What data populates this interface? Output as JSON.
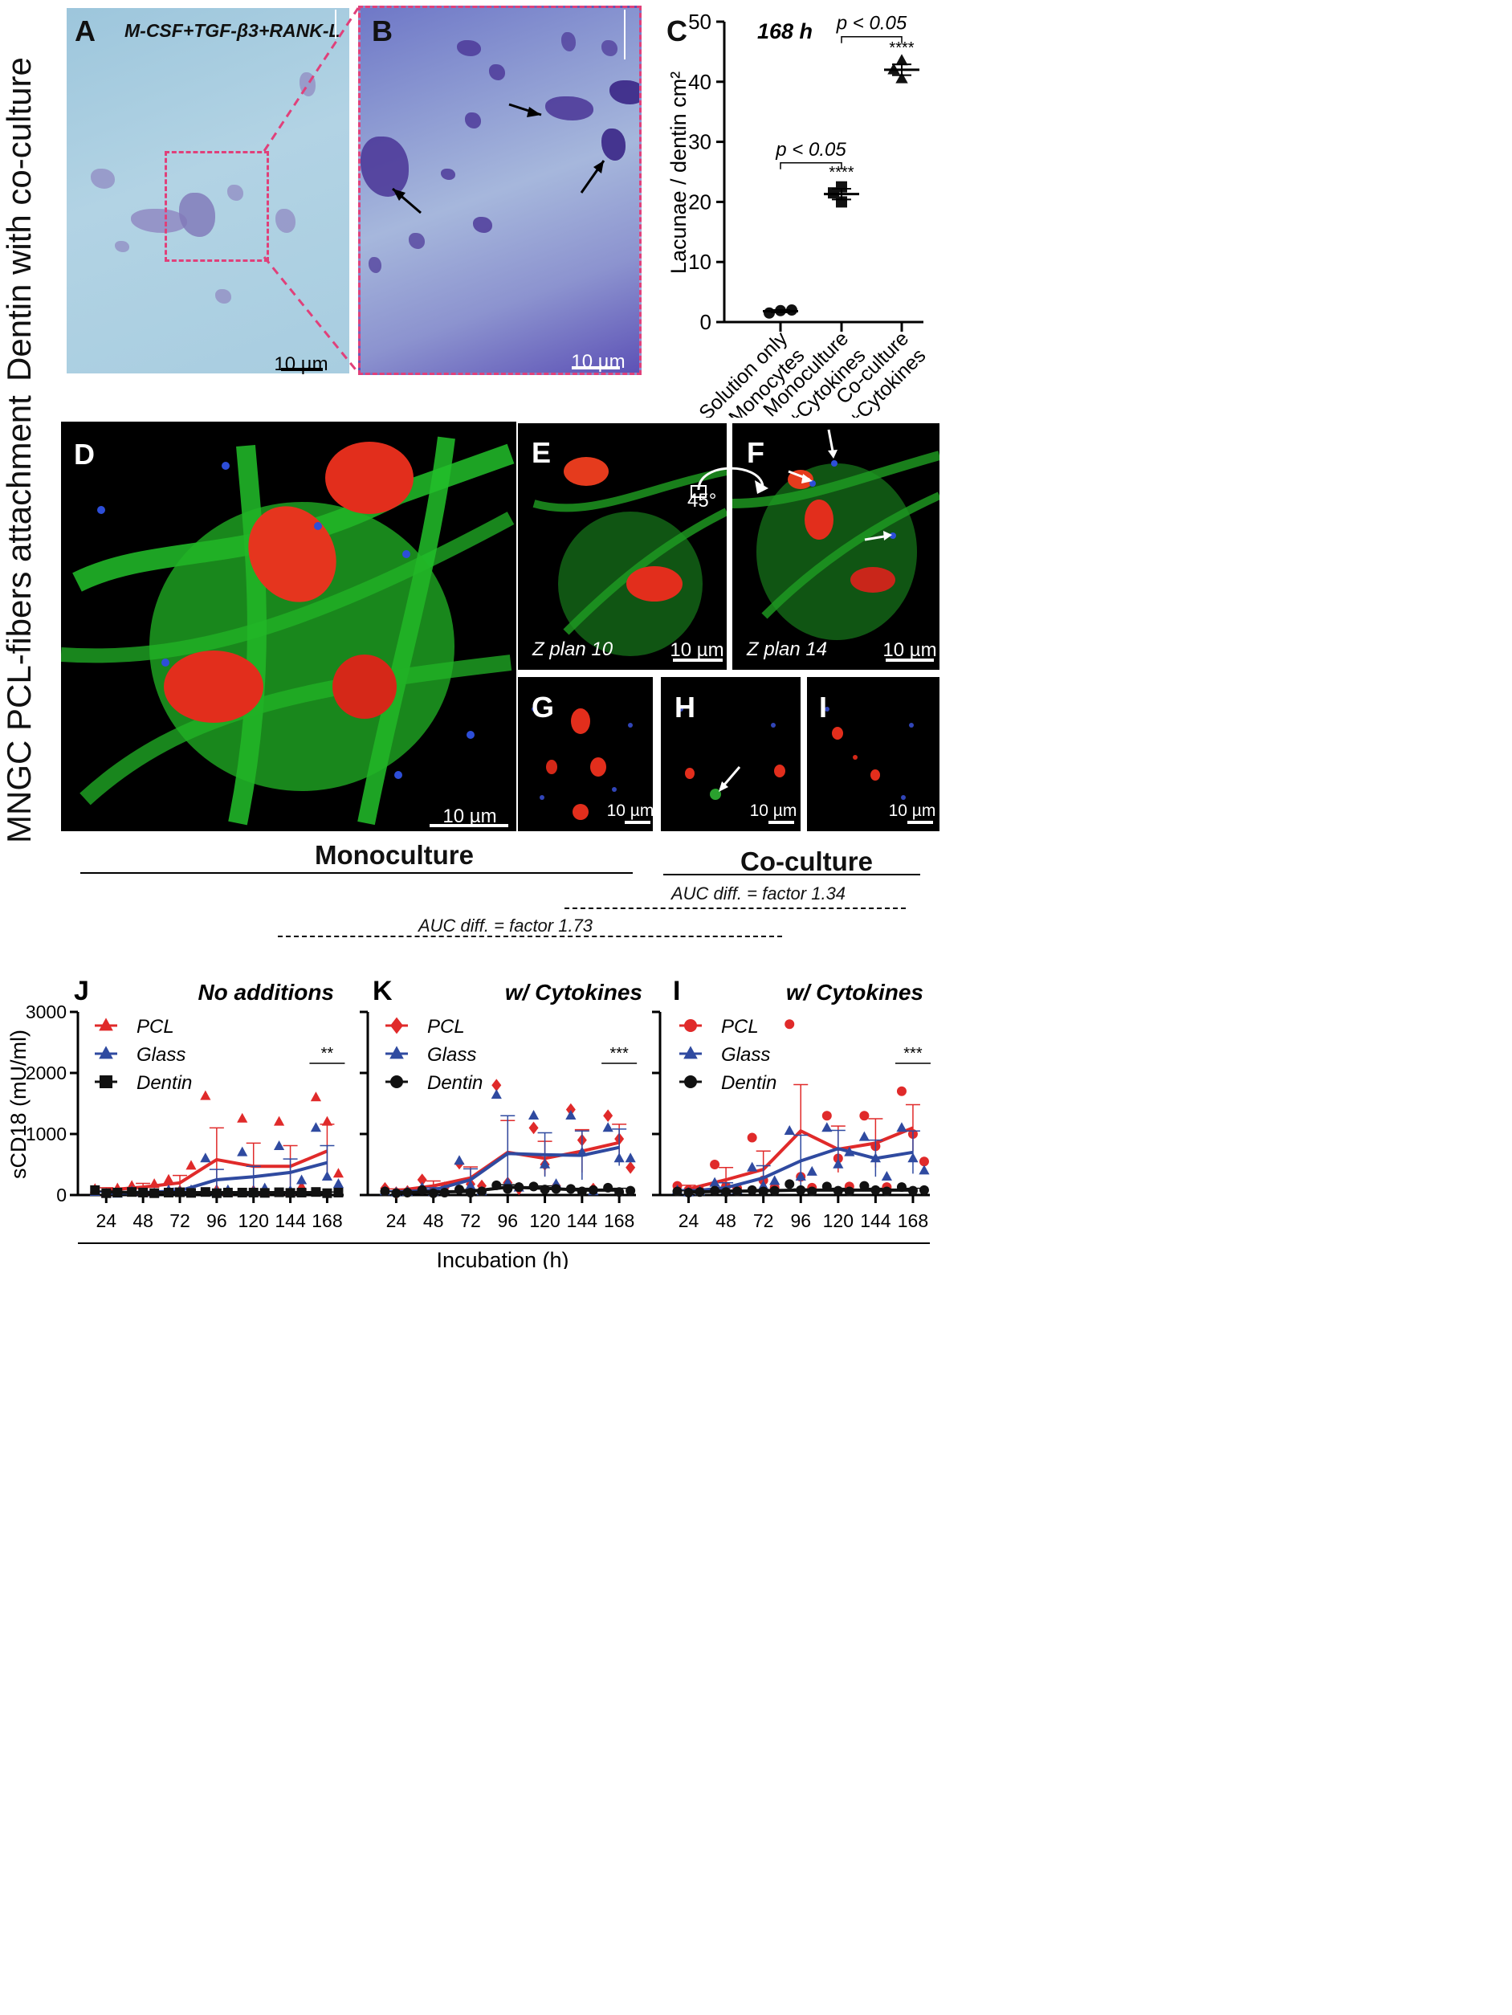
{
  "row_labels": {
    "top": "Dentin with co-culture",
    "middle": "MNGC PCL-fibers attachment"
  },
  "panels": {
    "A": {
      "letter": "A",
      "caption": "M-CSF+TGF-β3+RANK-L",
      "scale": "10 µm"
    },
    "B": {
      "letter": "B",
      "scale": "10 µm"
    },
    "C": {
      "letter": "C"
    },
    "D": {
      "letter": "D",
      "scale": "10 µm"
    },
    "E": {
      "letter": "E",
      "zplan": "Z plan 10",
      "scale": "10 µm"
    },
    "F": {
      "letter": "F",
      "zplan": "Z plan 14",
      "scale": "10 µm"
    },
    "angle": "45°",
    "G": {
      "letter": "G",
      "scale": "10 µm"
    },
    "H": {
      "letter": "H",
      "scale": "10 µm"
    },
    "I": {
      "letter": "I",
      "scale": "10 µm"
    }
  },
  "group_labels": {
    "monoculture": "Monoculture",
    "coculture": "Co-culture",
    "auc1": "AUC diff. = factor 1.34",
    "auc2": "AUC diff. = factor 1.73"
  },
  "colors": {
    "pcl": "#e02a2a",
    "glass": "#2f4aa0",
    "dentin": "#111111",
    "dashed_box": "#e0407a"
  },
  "chart_data": [
    {
      "id": "C",
      "type": "scatter",
      "title": "168 h",
      "ylabel": "Lacunae / dentin cm²",
      "ylim": [
        0,
        50
      ],
      "yticks": [
        0,
        10,
        20,
        30,
        40,
        50
      ],
      "categories": [
        "Solution only\nMonocytes",
        "Monoculture\n+Cytokines",
        "Co-culture\n+Cytokines"
      ],
      "category_lines": [
        [
          "Solution only",
          "Monocytes"
        ],
        [
          "Monoculture",
          "+Cytokines"
        ],
        [
          "Co-culture",
          "+Cytokines"
        ]
      ],
      "series": [
        {
          "marker": "circle",
          "points": [
            1.5,
            1.9,
            2.0
          ],
          "mean": 1.8,
          "sem": 0.2
        },
        {
          "marker": "square",
          "points": [
            22.5,
            21.5,
            20.0
          ],
          "mean": 21.3,
          "sem": 0.9,
          "sig": "****"
        },
        {
          "marker": "triangle",
          "points": [
            43.5,
            42.0,
            40.5
          ],
          "mean": 42.0,
          "sem": 0.9,
          "sig": "****"
        }
      ],
      "brackets": [
        {
          "from": 0,
          "to": 1,
          "y": 26.5,
          "label": "p < 0.05"
        },
        {
          "from": 1,
          "to": 2,
          "y": 47.5,
          "label": "p < 0.05"
        }
      ]
    },
    {
      "id": "J",
      "type": "line",
      "title": "No additions",
      "ylabel": "sCD18 (mU/ml)",
      "xlabel": "Incubation (h)",
      "x": [
        24,
        48,
        72,
        96,
        120,
        144,
        168
      ],
      "ylim": [
        0,
        3000
      ],
      "yticks": [
        0,
        1000,
        2000,
        3000
      ],
      "series": [
        {
          "name": "PCL",
          "marker": "triangle",
          "values": [
            80,
            130,
            200,
            580,
            470,
            470,
            720
          ],
          "err": [
            40,
            60,
            120,
            520,
            380,
            340,
            440
          ],
          "points": [
            [
              100,
              30,
              110
            ],
            [
              150,
              60,
              180
            ],
            [
              250,
              80,
              480
            ],
            [
              1620,
              90,
              60
            ],
            [
              1250,
              80,
              60
            ],
            [
              1200,
              60,
              140
            ],
            [
              1600,
              1200,
              350
            ]
          ]
        },
        {
          "name": "Glass",
          "marker": "triangle",
          "values": [
            30,
            40,
            70,
            250,
            300,
            370,
            530
          ],
          "err": [
            20,
            20,
            40,
            170,
            170,
            220,
            280
          ],
          "points": [
            [
              50,
              20,
              20
            ],
            [
              60,
              30,
              30
            ],
            [
              80,
              60,
              80
            ],
            [
              600,
              50,
              80
            ],
            [
              700,
              60,
              110
            ],
            [
              800,
              70,
              240
            ],
            [
              1100,
              300,
              180
            ]
          ]
        },
        {
          "name": "Dentin",
          "marker": "square",
          "values": [
            50,
            40,
            40,
            40,
            40,
            40,
            40
          ],
          "err": [
            15,
            10,
            10,
            10,
            10,
            10,
            10
          ],
          "points": [
            [
              80,
              30,
              40
            ],
            [
              50,
              40,
              30
            ],
            [
              40,
              45,
              35
            ],
            [
              50,
              30,
              40
            ],
            [
              40,
              40,
              35
            ],
            [
              45,
              35,
              40
            ],
            [
              50,
              30,
              40
            ]
          ]
        }
      ],
      "sig": {
        "label": "**",
        "x_index": 6
      }
    },
    {
      "id": "K",
      "type": "line",
      "title": "w/ Cytokines",
      "ylabel": "",
      "xlabel": "Incubation (h)",
      "x": [
        24,
        48,
        72,
        96,
        120,
        144,
        168
      ],
      "ylim": [
        0,
        3000
      ],
      "yticks": [
        0,
        1000,
        2000,
        3000
      ],
      "series": [
        {
          "name": "PCL",
          "marker": "diamond",
          "values": [
            70,
            150,
            280,
            700,
            600,
            720,
            860
          ],
          "err": [
            30,
            80,
            180,
            520,
            280,
            350,
            300
          ],
          "points": [
            [
              110,
              40,
              60
            ],
            [
              250,
              90,
              120
            ],
            [
              520,
              180,
              150
            ],
            [
              1800,
              200,
              100
            ],
            [
              1100,
              500,
              150
            ],
            [
              1400,
              900,
              100
            ],
            [
              1300,
              920,
              450
            ]
          ]
        },
        {
          "name": "Glass",
          "marker": "triangle",
          "values": [
            50,
            80,
            250,
            680,
            660,
            650,
            780
          ],
          "err": [
            20,
            40,
            180,
            620,
            360,
            400,
            300
          ],
          "points": [
            [
              60,
              40,
              50
            ],
            [
              120,
              50,
              80
            ],
            [
              560,
              150,
              60
            ],
            [
              1640,
              200,
              120
            ],
            [
              1300,
              500,
              180
            ],
            [
              1300,
              700,
              60
            ],
            [
              1100,
              600,
              600
            ]
          ]
        },
        {
          "name": "Dentin",
          "marker": "circle",
          "values": [
            40,
            50,
            60,
            130,
            110,
            80,
            80
          ],
          "err": [
            15,
            20,
            30,
            40,
            40,
            30,
            30
          ],
          "points": [
            [
              60,
              30,
              40
            ],
            [
              80,
              30,
              40
            ],
            [
              90,
              40,
              60
            ],
            [
              160,
              100,
              130
            ],
            [
              140,
              90,
              100
            ],
            [
              100,
              60,
              80
            ],
            [
              120,
              50,
              70
            ]
          ]
        }
      ],
      "sig": {
        "label": "***",
        "x_index": 6
      }
    },
    {
      "id": "I",
      "type": "line",
      "title": "w/ Cytokines",
      "ylabel": "",
      "xlabel": "Incubation (h)",
      "x": [
        24,
        48,
        72,
        96,
        120,
        144,
        168
      ],
      "ylim": [
        0,
        3000
      ],
      "yticks": [
        0,
        1000,
        2000,
        3000
      ],
      "series": [
        {
          "name": "PCL",
          "marker": "circle",
          "values": [
            100,
            250,
            420,
            1050,
            750,
            850,
            1100
          ],
          "err": [
            60,
            200,
            300,
            760,
            380,
            400,
            380
          ],
          "points": [
            [
              150,
              80,
              70
            ],
            [
              500,
              140,
              110
            ],
            [
              940,
              240,
              120
            ],
            [
              2800,
              300,
              120
            ],
            [
              1300,
              600,
              140
            ],
            [
              1300,
              800,
              130
            ],
            [
              1700,
              1000,
              550
            ]
          ]
        },
        {
          "name": "Glass",
          "marker": "triangle",
          "values": [
            60,
            120,
            280,
            560,
            760,
            600,
            700
          ],
          "err": [
            30,
            80,
            200,
            420,
            300,
            300,
            350
          ],
          "points": [
            [
              80,
              40,
              60
            ],
            [
              200,
              80,
              80
            ],
            [
              450,
              150,
              230
            ],
            [
              1050,
              300,
              380
            ],
            [
              1100,
              500,
              700
            ],
            [
              950,
              600,
              300
            ],
            [
              1100,
              600,
              400
            ]
          ]
        },
        {
          "name": "Dentin",
          "marker": "circle",
          "values": [
            50,
            60,
            70,
            80,
            80,
            80,
            80
          ],
          "err": [
            20,
            20,
            20,
            20,
            30,
            30,
            30
          ],
          "points": [
            [
              60,
              40,
              50
            ],
            [
              70,
              50,
              60
            ],
            [
              80,
              60,
              70
            ],
            [
              180,
              80,
              60
            ],
            [
              140,
              70,
              60
            ],
            [
              150,
              80,
              60
            ],
            [
              130,
              70,
              80
            ]
          ]
        }
      ],
      "sig": {
        "label": "***",
        "x_index": 6
      }
    }
  ],
  "x_axis_title": "Incubation (h)"
}
